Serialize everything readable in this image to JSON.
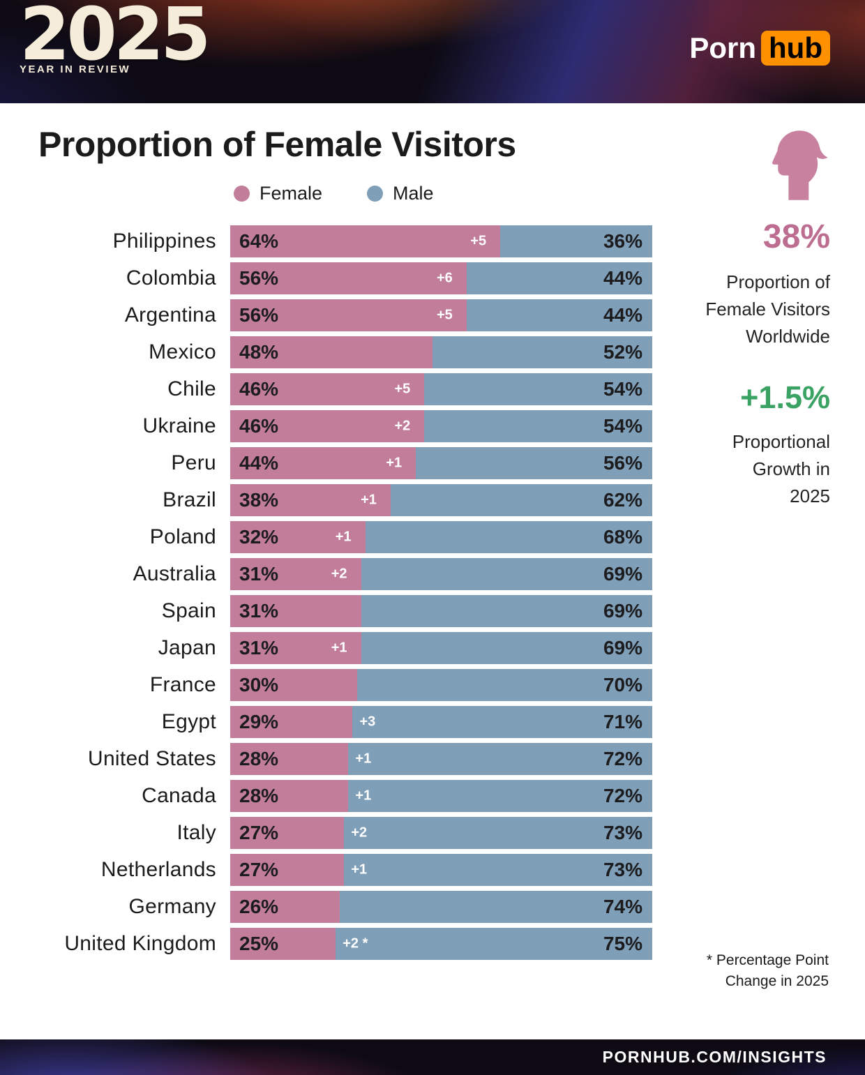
{
  "header": {
    "year": "2025",
    "subtitle": "YEAR IN REVIEW",
    "brand_part1": "Porn",
    "brand_part2": "hub"
  },
  "title": "Proportion of Female Visitors",
  "colors": {
    "female_bar": "#c17d99",
    "male_bar": "#7f9eb8",
    "accent_pink": "#bd6d90",
    "accent_green": "#3aa263",
    "brand_orange": "#ff9000",
    "icon_pink": "#c8829f"
  },
  "chart_data": {
    "type": "bar",
    "orientation": "horizontal",
    "stacked": true,
    "title": "Proportion of Female Visitors",
    "legend": [
      "Female",
      "Male"
    ],
    "value_suffix": "%",
    "xlim": [
      0,
      100
    ],
    "categories": [
      "Philippines",
      "Colombia",
      "Argentina",
      "Mexico",
      "Chile",
      "Ukraine",
      "Peru",
      "Brazil",
      "Poland",
      "Australia",
      "Spain",
      "Japan",
      "France",
      "Egypt",
      "United States",
      "Canada",
      "Italy",
      "Netherlands",
      "Germany",
      "United Kingdom"
    ],
    "series": [
      {
        "name": "Female",
        "values": [
          64,
          56,
          56,
          48,
          46,
          46,
          44,
          38,
          32,
          31,
          31,
          31,
          30,
          29,
          28,
          28,
          27,
          27,
          26,
          25
        ]
      },
      {
        "name": "Male",
        "values": [
          36,
          44,
          44,
          52,
          54,
          54,
          56,
          62,
          68,
          69,
          69,
          69,
          70,
          71,
          72,
          72,
          73,
          73,
          74,
          75
        ]
      }
    ],
    "change_labels": [
      "+5",
      "+6",
      "+5",
      "",
      "+5",
      "+2",
      "+1",
      "+1",
      "+1",
      "+2",
      "",
      "+1",
      "",
      "+3",
      "+1",
      "+1",
      "+2",
      "+1",
      "",
      "+2 *"
    ]
  },
  "sidebar": {
    "stat1_value": "38%",
    "stat1_label": "Proportion of\nFemale Visitors\nWorldwide",
    "stat2_value": "+1.5%",
    "stat2_label": "Proportional\nGrowth in\n2025",
    "footnote": "* Percentage Point\nChange in 2025"
  },
  "footer": {
    "url": "PORNHUB.COM/INSIGHTS"
  }
}
